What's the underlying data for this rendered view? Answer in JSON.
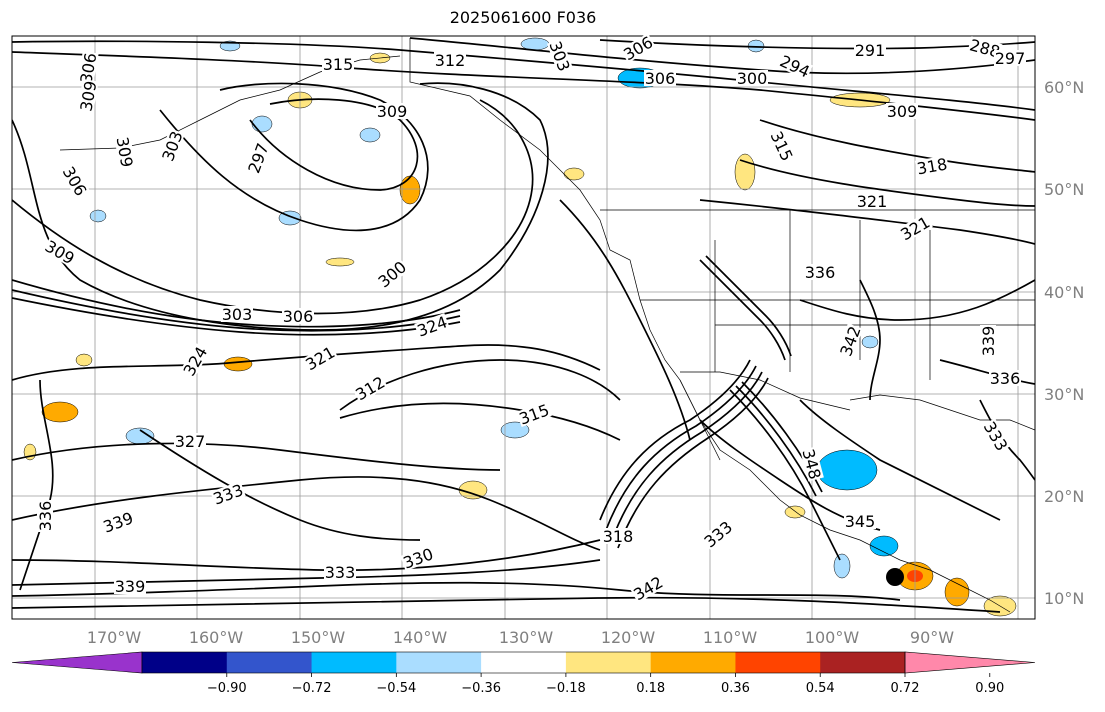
{
  "title": "2025061600 F036",
  "lat_labels": [
    "60°N",
    "50°N",
    "40°N",
    "30°N",
    "20°N",
    "10°N"
  ],
  "lon_labels": [
    "170°W",
    "160°W",
    "150°W",
    "140°W",
    "130°W",
    "120°W",
    "110°W",
    "100°W",
    "90°W"
  ],
  "colorbar": {
    "tick_labels": [
      "−0.90",
      "−0.72",
      "−0.54",
      "−0.36",
      "−0.18",
      "0.18",
      "0.36",
      "0.54",
      "0.72",
      "0.90"
    ],
    "colors": [
      "#9933cc",
      "#000088",
      "#3355cc",
      "#00bbff",
      "#aaddff",
      "#ffffff",
      "#ffe680",
      "#ffaa00",
      "#ff4400",
      "#aa2222",
      "#ff88aa"
    ]
  },
  "contour_labels": [
    "306",
    "309",
    "306",
    "309",
    "303",
    "297",
    "315",
    "312",
    "309",
    "306",
    "300",
    "294",
    "291",
    "288",
    "297",
    "309",
    "315",
    "318",
    "321",
    "321",
    "303",
    "306",
    "300",
    "303",
    "306",
    "324",
    "309",
    "324",
    "321",
    "312",
    "315",
    "336",
    "342",
    "339",
    "336",
    "333",
    "348",
    "327",
    "333",
    "336",
    "339",
    "339",
    "333",
    "330",
    "318",
    "333",
    "342",
    "345"
  ],
  "marker": {
    "color": "#000000",
    "label": "storm position"
  }
}
